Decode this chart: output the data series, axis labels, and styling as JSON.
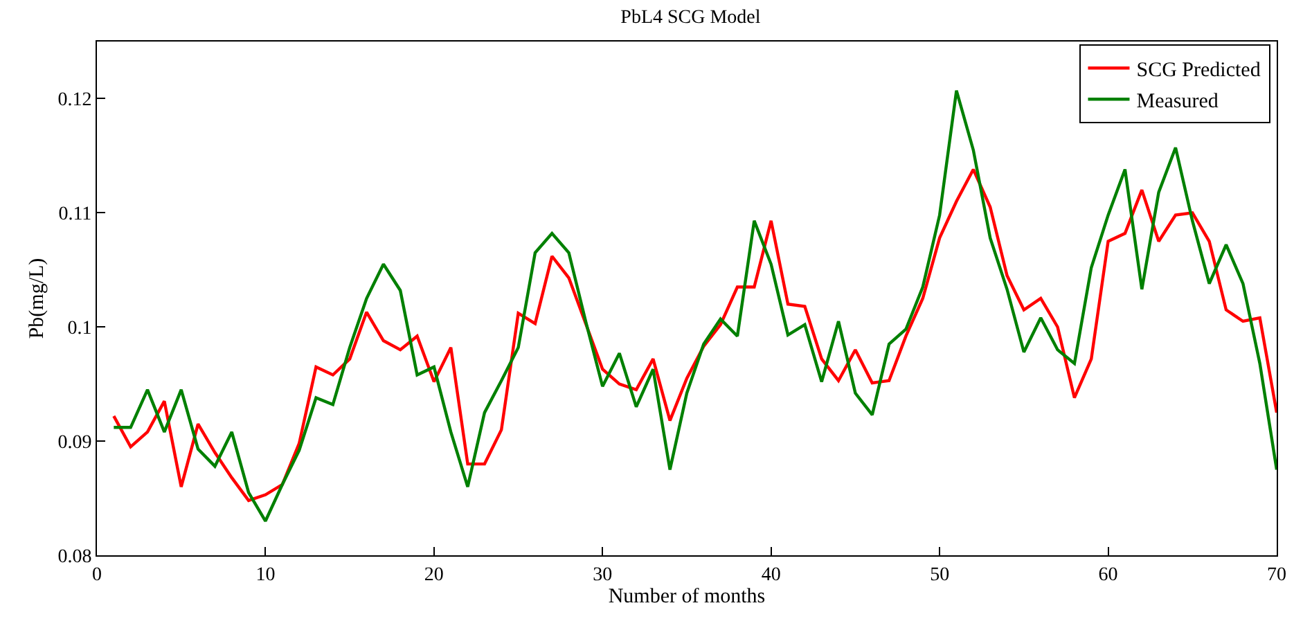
{
  "chart_data": {
    "type": "line",
    "title": "PbL4 SCG Model",
    "xlabel": "Number of months",
    "ylabel": "Pb(mg/L)",
    "x": [
      1,
      2,
      3,
      4,
      5,
      6,
      7,
      8,
      9,
      10,
      11,
      12,
      13,
      14,
      15,
      16,
      17,
      18,
      19,
      20,
      21,
      22,
      23,
      24,
      25,
      26,
      27,
      28,
      29,
      30,
      31,
      32,
      33,
      34,
      35,
      36,
      37,
      38,
      39,
      40,
      41,
      42,
      43,
      44,
      45,
      46,
      47,
      48,
      49,
      50,
      51,
      52,
      53,
      54,
      55,
      56,
      57,
      58,
      59,
      60,
      61,
      62,
      63,
      64,
      65,
      66,
      67,
      68,
      69,
      70
    ],
    "series": [
      {
        "name": "SCG Predicted",
        "color": "#ff0000",
        "values": [
          0.0922,
          0.0895,
          0.0908,
          0.0935,
          0.086,
          0.0915,
          0.089,
          0.0868,
          0.0848,
          0.0853,
          0.0862,
          0.0898,
          0.0965,
          0.0958,
          0.0972,
          0.1013,
          0.0988,
          0.098,
          0.0992,
          0.0952,
          0.0982,
          0.088,
          0.088,
          0.091,
          0.1012,
          0.1003,
          0.1062,
          0.1043,
          0.1003,
          0.0963,
          0.095,
          0.0945,
          0.0972,
          0.0918,
          0.0955,
          0.0983,
          0.1002,
          0.1035,
          0.1035,
          0.1093,
          0.102,
          0.1018,
          0.0972,
          0.0953,
          0.098,
          0.0951,
          0.0953,
          0.0992,
          0.1025,
          0.1078,
          0.111,
          0.1138,
          0.1105,
          0.1045,
          0.1015,
          0.1025,
          0.1,
          0.0938,
          0.0972,
          0.1075,
          0.1082,
          0.112,
          0.1075,
          0.1098,
          0.11,
          0.1075,
          0.1015,
          0.1005,
          0.1008,
          0.0925
        ]
      },
      {
        "name": "Measured",
        "color": "#008000",
        "values": [
          0.0912,
          0.0912,
          0.0945,
          0.0908,
          0.0945,
          0.0893,
          0.0878,
          0.0908,
          0.0855,
          0.083,
          0.0862,
          0.0892,
          0.0938,
          0.0932,
          0.0982,
          0.1025,
          0.1055,
          0.1032,
          0.0958,
          0.0965,
          0.0908,
          0.086,
          0.0925,
          0.0953,
          0.0982,
          0.1065,
          0.1082,
          0.1065,
          0.1005,
          0.0948,
          0.0977,
          0.093,
          0.0963,
          0.0875,
          0.0942,
          0.0985,
          0.1007,
          0.0992,
          0.1093,
          0.1055,
          0.0993,
          0.1002,
          0.0952,
          0.1005,
          0.0942,
          0.0923,
          0.0985,
          0.0998,
          0.1035,
          0.1098,
          0.1207,
          0.1155,
          0.1078,
          0.1033,
          0.0978,
          0.1008,
          0.098,
          0.0968,
          0.1052,
          0.1098,
          0.1138,
          0.1033,
          0.1118,
          0.1157,
          0.1093,
          0.1038,
          0.1072,
          0.1038,
          0.0968,
          0.0875
        ]
      }
    ],
    "xlim": [
      0,
      70
    ],
    "xticks": [
      0,
      10,
      20,
      30,
      40,
      50,
      60,
      70
    ],
    "ylim": [
      0.08,
      0.125
    ],
    "yticks": [
      0.08,
      0.09,
      {
        "value": 0.1,
        "label": "0.1"
      },
      0.11,
      0.12
    ],
    "legend": "top right",
    "marker": "none",
    "line_style": "solid"
  }
}
